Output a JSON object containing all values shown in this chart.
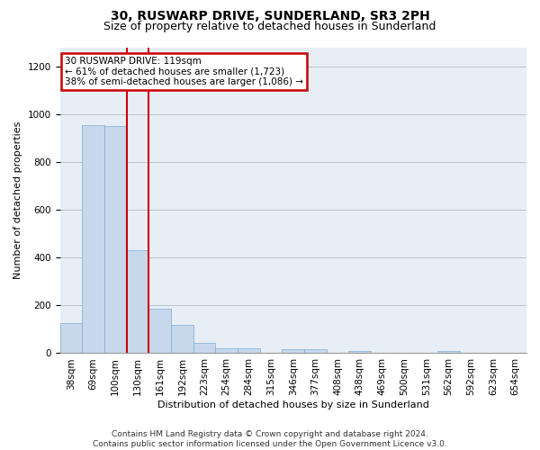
{
  "title": "30, RUSWARP DRIVE, SUNDERLAND, SR3 2PH",
  "subtitle": "Size of property relative to detached houses in Sunderland",
  "xlabel": "Distribution of detached houses by size in Sunderland",
  "ylabel": "Number of detached properties",
  "footer_line1": "Contains HM Land Registry data © Crown copyright and database right 2024.",
  "footer_line2": "Contains public sector information licensed under the Open Government Licence v3.0.",
  "annotation_title": "30 RUSWARP DRIVE: 119sqm",
  "annotation_line1": "← 61% of detached houses are smaller (1,723)",
  "annotation_line2": "38% of semi-detached houses are larger (1,086) →",
  "bar_labels": [
    "38sqm",
    "69sqm",
    "100sqm",
    "130sqm",
    "161sqm",
    "192sqm",
    "223sqm",
    "254sqm",
    "284sqm",
    "315sqm",
    "346sqm",
    "377sqm",
    "408sqm",
    "438sqm",
    "469sqm",
    "500sqm",
    "531sqm",
    "562sqm",
    "592sqm",
    "623sqm",
    "654sqm"
  ],
  "bar_values": [
    125,
    955,
    950,
    430,
    185,
    120,
    45,
    20,
    20,
    0,
    15,
    15,
    0,
    10,
    0,
    0,
    0,
    10,
    0,
    0,
    0
  ],
  "highlight_bar_index": 3,
  "bar_color": "#c8d8ec",
  "bar_edge_color": "#7aadd4",
  "highlight_edge_color": "#cc0000",
  "annotation_box_color": "#cc0000",
  "background_color": "#ffffff",
  "plot_bg_color": "#e8eef5",
  "grid_color": "#b0bec8",
  "ylim": [
    0,
    1280
  ],
  "yticks": [
    0,
    200,
    400,
    600,
    800,
    1000,
    1200
  ],
  "title_fontsize": 10,
  "subtitle_fontsize": 9,
  "axis_label_fontsize": 8,
  "tick_fontsize": 7.5,
  "annotation_fontsize": 7.5,
  "footer_fontsize": 6.5
}
